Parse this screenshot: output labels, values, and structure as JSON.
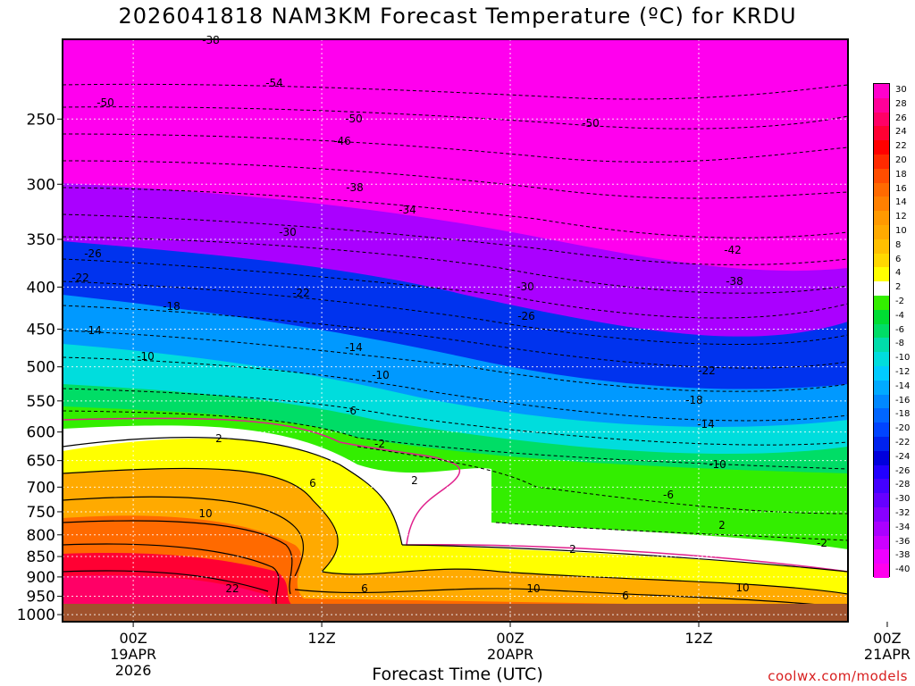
{
  "title": "2026041818 NAM3KM Forecast Temperature (ºC) for KRDU",
  "xlabel": "Forecast Time (UTC)",
  "credit": "coolwx.com/models",
  "chart_data": {
    "type": "heatmap",
    "title": "2026041818 NAM3KM Forecast Temperature (ºC) for KRDU",
    "xlabel": "Forecast Time (UTC)",
    "ylabel": "",
    "x_range_hours": [
      -4.5,
      45.5
    ],
    "y_log_pressure_hPa": [
      200,
      1020
    ],
    "y_ticks": [
      250,
      300,
      350,
      400,
      450,
      500,
      550,
      600,
      650,
      700,
      750,
      800,
      850,
      900,
      950,
      1000
    ],
    "x_ticks": [
      {
        "hour": 0,
        "labels": [
          "00Z",
          "19APR",
          "2026"
        ]
      },
      {
        "hour": 12,
        "labels": [
          "12Z"
        ]
      },
      {
        "hour": 24,
        "labels": [
          "00Z",
          "20APR"
        ]
      },
      {
        "hour": 36,
        "labels": [
          "12Z"
        ]
      },
      {
        "hour": 48,
        "labels": [
          "00Z",
          "21APR"
        ]
      }
    ],
    "grid": true,
    "colorbar_levels": [
      30,
      28,
      26,
      24,
      22,
      20,
      18,
      16,
      14,
      12,
      10,
      8,
      6,
      4,
      2,
      -2,
      -4,
      -6,
      -8,
      -10,
      -12,
      -14,
      -16,
      -18,
      -20,
      -22,
      -24,
      -26,
      -28,
      -30,
      -32,
      -34,
      -36,
      -38,
      -40
    ],
    "colorbar_colors": [
      "#ff00cc",
      "#ff0099",
      "#ff0066",
      "#ff0033",
      "#ff0000",
      "#ff2a00",
      "#ff4d00",
      "#ff6a00",
      "#ff8000",
      "#ff9900",
      "#ffaa00",
      "#ffc000",
      "#ffd800",
      "#ffff00",
      "#ffffff",
      "#33ee00",
      "#00dd33",
      "#00dd66",
      "#00ddaa",
      "#00dddd",
      "#00ccff",
      "#00aaff",
      "#0088ff",
      "#0066ff",
      "#0044ff",
      "#0022ee",
      "#0000dd",
      "#2200ff",
      "#4400ff",
      "#6600ff",
      "#8800ff",
      "#aa00ff",
      "#cc00ff",
      "#ee00ff",
      "#ff00ee"
    ],
    "contour_labels": [
      "-38",
      "-54",
      "-50",
      "-50",
      "-50",
      "-46",
      "-38",
      "-34",
      "-30",
      "-26",
      "-22",
      "-22",
      "-18",
      "-14",
      "-10",
      "-14",
      "-10",
      "-6",
      "-2",
      "2",
      "2",
      "6",
      "10",
      "22",
      "6",
      "2",
      "10",
      "6",
      "10",
      "2",
      "-2",
      "-6",
      "-10",
      "-14",
      "-18",
      "-22",
      "-26",
      "-30",
      "-38",
      "-42"
    ]
  },
  "colors": {
    "ground": "#a0522d",
    "freezing_line": "#e0208c",
    "contour": "#000000"
  }
}
